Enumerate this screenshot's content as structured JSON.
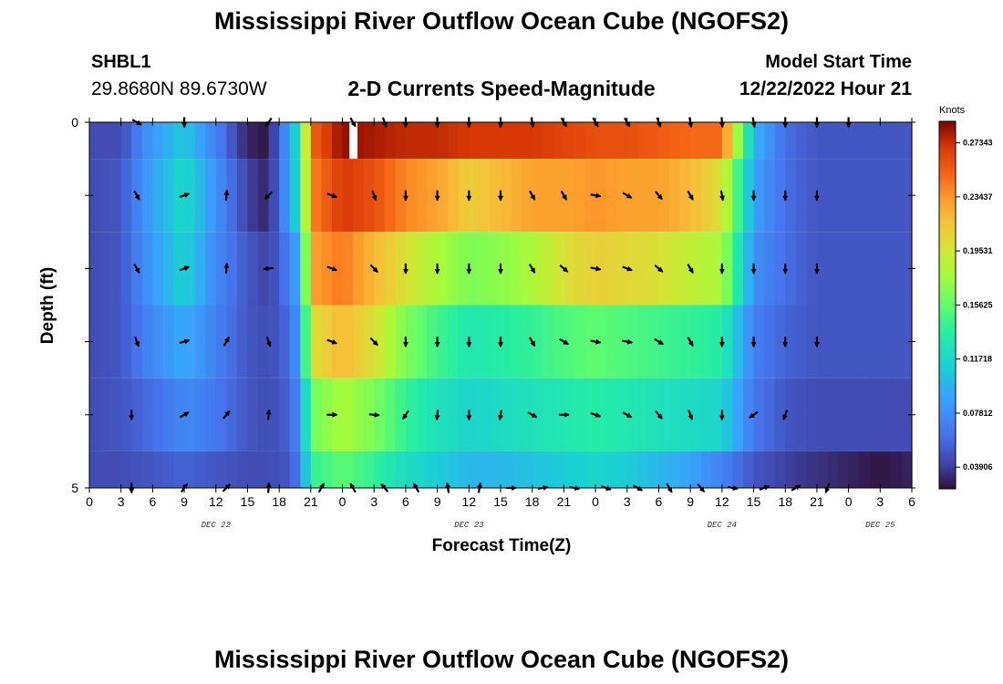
{
  "header": {
    "title": "Mississippi River Outflow Ocean Cube (NGOFS2)",
    "station_id": "SHBL1",
    "station_coords": "29.8680N  89.6730W",
    "subtitle": "2-D Currents Speed-Magnitude",
    "model_start_label": "Model Start Time",
    "model_start_value": "12/22/2022 Hour 21"
  },
  "footer": {
    "title": "Mississippi River Outflow Ocean Cube (NGOFS2)"
  },
  "chart_data": {
    "type": "heatmap",
    "xlabel": "Forecast Time(Z)",
    "ylabel": "Depth (ft)",
    "x_start_hour_label": 0,
    "x_tick_step_hours": 3,
    "x_tick_labels": [
      "0",
      "3",
      "6",
      "9",
      "12",
      "15",
      "18",
      "21",
      "0",
      "3",
      "6",
      "9",
      "12",
      "15",
      "18",
      "21",
      "0",
      "3",
      "6",
      "9",
      "12",
      "15",
      "18",
      "21",
      "0",
      "3",
      "6"
    ],
    "date_labels": [
      {
        "text": "DEC 22",
        "at_tick": 4
      },
      {
        "text": "DEC 23",
        "at_tick": 12
      },
      {
        "text": "DEC 24",
        "at_tick": 20
      },
      {
        "text": "DEC 25",
        "at_tick": 25
      }
    ],
    "y_tick_labels": [
      "0",
      "5"
    ],
    "ylim": [
      0,
      5
    ],
    "depth_levels": [
      0,
      1,
      2,
      3,
      4,
      5
    ],
    "colorbar": {
      "unit": "Knots",
      "min": 0.0234,
      "max": 0.289,
      "tick_labels": [
        "0.27343",
        "0.23437",
        "0.19531",
        "0.15625",
        "0.11718",
        "0.07812",
        "0.03906"
      ],
      "tick_values": [
        0.27343,
        0.23437,
        0.19531,
        0.15625,
        0.11718,
        0.07812,
        0.03906
      ]
    },
    "speed_anchors_x_hours": [
      0,
      3,
      6,
      9,
      12,
      15,
      17,
      19,
      20,
      21,
      24,
      27,
      30,
      33,
      36,
      39,
      42,
      45,
      48,
      51,
      54,
      57,
      60,
      63,
      66,
      69,
      72,
      75,
      78
    ],
    "speed_rows": [
      [
        0.045,
        0.045,
        0.085,
        0.11,
        0.07,
        0.03,
        0.025,
        0.09,
        0.13,
        0.25,
        0.285,
        0.28,
        0.275,
        0.275,
        0.27,
        0.27,
        0.27,
        0.265,
        0.26,
        0.26,
        0.255,
        0.25,
        0.25,
        0.1,
        0.06,
        0.05,
        0.05,
        0.05,
        0.05
      ],
      [
        0.045,
        0.05,
        0.09,
        0.12,
        0.08,
        0.04,
        0.03,
        0.09,
        0.13,
        0.24,
        0.27,
        0.26,
        0.24,
        0.23,
        0.21,
        0.22,
        0.23,
        0.23,
        0.235,
        0.23,
        0.23,
        0.22,
        0.2,
        0.09,
        0.06,
        0.05,
        0.05,
        0.05,
        0.05
      ],
      [
        0.045,
        0.05,
        0.085,
        0.115,
        0.075,
        0.05,
        0.04,
        0.07,
        0.1,
        0.23,
        0.245,
        0.22,
        0.2,
        0.18,
        0.165,
        0.17,
        0.18,
        0.2,
        0.21,
        0.205,
        0.2,
        0.19,
        0.18,
        0.08,
        0.06,
        0.05,
        0.05,
        0.05,
        0.05
      ],
      [
        0.045,
        0.05,
        0.075,
        0.095,
        0.07,
        0.05,
        0.045,
        0.06,
        0.09,
        0.2,
        0.22,
        0.2,
        0.165,
        0.145,
        0.13,
        0.135,
        0.14,
        0.15,
        0.155,
        0.15,
        0.145,
        0.14,
        0.135,
        0.07,
        0.055,
        0.05,
        0.05,
        0.05,
        0.05
      ],
      [
        0.045,
        0.05,
        0.06,
        0.075,
        0.065,
        0.05,
        0.045,
        0.055,
        0.08,
        0.16,
        0.18,
        0.165,
        0.14,
        0.125,
        0.115,
        0.12,
        0.125,
        0.13,
        0.135,
        0.13,
        0.125,
        0.12,
        0.115,
        0.065,
        0.05,
        0.045,
        0.045,
        0.045,
        0.045
      ],
      [
        0.045,
        0.045,
        0.05,
        0.055,
        0.05,
        0.045,
        0.045,
        0.05,
        0.07,
        0.14,
        0.155,
        0.14,
        0.12,
        0.11,
        0.1,
        0.1,
        0.105,
        0.11,
        0.115,
        0.11,
        0.1,
        0.09,
        0.07,
        0.05,
        0.04,
        0.035,
        0.03,
        0.025,
        0.03
      ]
    ],
    "missing_data": [
      {
        "x_hours": 25.0,
        "depth_level": 0
      }
    ],
    "vectors": [
      {
        "depth": 0,
        "items": [
          [
            4.5,
            120
          ],
          [
            9,
            180
          ],
          [
            17,
            215
          ],
          [
            25,
            150
          ],
          [
            28,
            160
          ],
          [
            30,
            180
          ],
          [
            33,
            180
          ],
          [
            36,
            180
          ],
          [
            39,
            180
          ],
          [
            42,
            170
          ],
          [
            45,
            150
          ],
          [
            48,
            150
          ],
          [
            51,
            150
          ],
          [
            54,
            160
          ],
          [
            57,
            170
          ],
          [
            60,
            175
          ],
          [
            63,
            170
          ],
          [
            66,
            180
          ],
          [
            69,
            180
          ],
          [
            72,
            180
          ]
        ]
      },
      {
        "depth": 1,
        "items": [
          [
            4.5,
            150
          ],
          [
            9,
            70
          ],
          [
            13,
            5
          ],
          [
            17,
            225
          ],
          [
            23,
            110
          ],
          [
            27,
            160
          ],
          [
            30,
            180
          ],
          [
            33,
            180
          ],
          [
            36,
            180
          ],
          [
            39,
            180
          ],
          [
            42,
            150
          ],
          [
            45,
            150
          ],
          [
            48,
            100
          ],
          [
            51,
            120
          ],
          [
            54,
            140
          ],
          [
            57,
            150
          ],
          [
            60,
            170
          ],
          [
            63,
            180
          ],
          [
            66,
            180
          ],
          [
            69,
            180
          ]
        ]
      },
      {
        "depth": 2,
        "items": [
          [
            4.5,
            150
          ],
          [
            9,
            70
          ],
          [
            13,
            5
          ],
          [
            17,
            265
          ],
          [
            23,
            110
          ],
          [
            27,
            135
          ],
          [
            30,
            180
          ],
          [
            33,
            180
          ],
          [
            36,
            180
          ],
          [
            39,
            180
          ],
          [
            42,
            150
          ],
          [
            45,
            130
          ],
          [
            48,
            100
          ],
          [
            51,
            110
          ],
          [
            54,
            130
          ],
          [
            57,
            150
          ],
          [
            60,
            180
          ],
          [
            63,
            180
          ],
          [
            66,
            180
          ],
          [
            69,
            180
          ]
        ]
      },
      {
        "depth": 3,
        "items": [
          [
            4.5,
            160
          ],
          [
            9,
            75
          ],
          [
            13,
            30
          ],
          [
            17,
            160
          ],
          [
            23,
            110
          ],
          [
            27,
            135
          ],
          [
            30,
            180
          ],
          [
            33,
            180
          ],
          [
            36,
            180
          ],
          [
            39,
            180
          ],
          [
            42,
            150
          ],
          [
            45,
            120
          ],
          [
            48,
            100
          ],
          [
            51,
            100
          ],
          [
            54,
            120
          ],
          [
            57,
            150
          ],
          [
            60,
            180
          ],
          [
            63,
            180
          ],
          [
            66,
            180
          ],
          [
            69,
            180
          ]
        ]
      },
      {
        "depth": 4,
        "items": [
          [
            4,
            180
          ],
          [
            9,
            60
          ],
          [
            13,
            40
          ],
          [
            17,
            5
          ],
          [
            23,
            90
          ],
          [
            27,
            95
          ],
          [
            30,
            215
          ],
          [
            33,
            185
          ],
          [
            36,
            180
          ],
          [
            39,
            190
          ],
          [
            42,
            120
          ],
          [
            45,
            90
          ],
          [
            48,
            110
          ],
          [
            51,
            120
          ],
          [
            54,
            140
          ],
          [
            57,
            160
          ],
          [
            60,
            180
          ],
          [
            63,
            235
          ],
          [
            66,
            200
          ]
        ]
      },
      {
        "depth": 5,
        "items": [
          [
            4,
            180
          ],
          [
            9,
            35
          ],
          [
            13,
            45
          ],
          [
            17,
            5
          ],
          [
            22,
            30
          ],
          [
            25,
            330
          ],
          [
            28,
            320
          ],
          [
            31,
            330
          ],
          [
            34,
            350
          ],
          [
            37,
            10
          ],
          [
            40,
            90
          ],
          [
            43,
            80
          ],
          [
            46,
            100
          ],
          [
            49,
            110
          ],
          [
            52,
            120
          ],
          [
            55,
            150
          ],
          [
            58,
            140
          ],
          [
            61,
            100
          ],
          [
            64,
            70
          ],
          [
            67,
            60
          ],
          [
            70,
            200
          ]
        ]
      }
    ]
  }
}
